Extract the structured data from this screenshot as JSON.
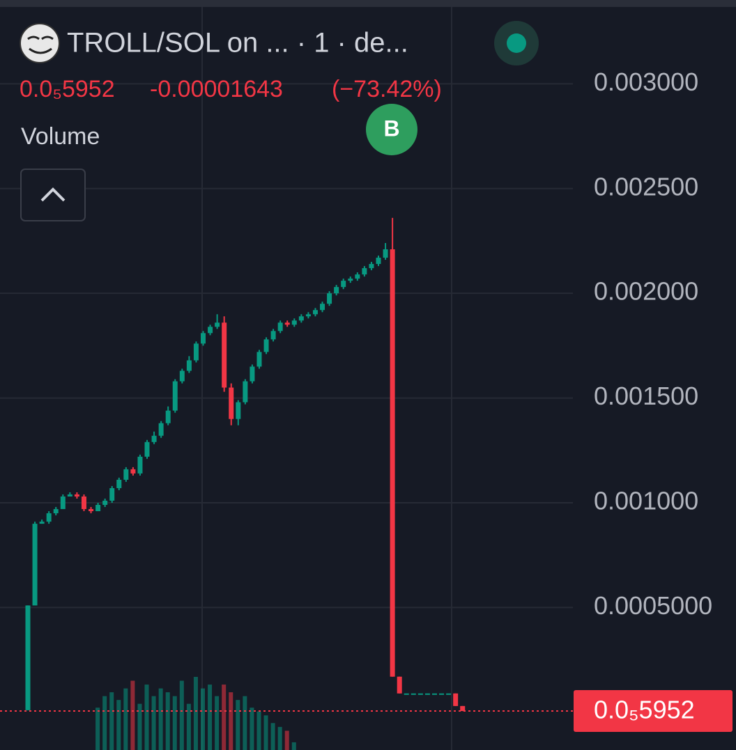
{
  "chart_data": {
    "type": "candlestick",
    "title": "TROLL/SOL on ... · 1 · de...",
    "last_price": {
      "value": 5.952e-06,
      "label": "0.0₅5952"
    },
    "change": {
      "value": -1.643e-05,
      "label": "-0.00001643"
    },
    "change_pct": {
      "value": -73.42,
      "label": "(−73.42%)"
    },
    "volume_label": "Volume",
    "annotation": "B",
    "up_color": "#089981",
    "down_color": "#f23645",
    "grid": true,
    "ylim": [
      -0.00018,
      0.0034
    ],
    "yticks": [
      {
        "value": 0.003,
        "label": "0.003000"
      },
      {
        "value": 0.0025,
        "label": "0.002500"
      },
      {
        "value": 0.002,
        "label": "0.002000"
      },
      {
        "value": 0.0015,
        "label": "0.001500"
      },
      {
        "value": 0.001,
        "label": "0.001000"
      },
      {
        "value": 0.0005,
        "label": "0.0005000"
      }
    ],
    "open": [
      1e-05,
      0.00051,
      0.0009,
      0.00091,
      0.00095,
      0.00097,
      0.00103,
      0.00104,
      0.00103,
      0.00097,
      0.00096,
      0.00099,
      0.00101,
      0.00107,
      0.00111,
      0.00116,
      0.00114,
      0.00122,
      0.00129,
      0.00132,
      0.00138,
      0.00144,
      0.00158,
      0.00163,
      0.00168,
      0.00176,
      0.00181,
      0.00184,
      0.00186,
      0.00155,
      0.0014,
      0.00148,
      0.00158,
      0.00165,
      0.00172,
      0.00178,
      0.00182,
      0.00186,
      0.00185,
      0.00187,
      0.00189,
      0.0019,
      0.00192,
      0.00195,
      0.002,
      0.00203,
      0.00206,
      0.00207,
      0.00209,
      0.00212,
      0.00214,
      0.00217,
      0.00221,
      0.00017,
      9e-05,
      9e-05,
      9e-05,
      9e-05,
      9e-05,
      9e-05,
      9e-05,
      9e-05,
      3e-05
    ],
    "high": [
      0.00051,
      0.00091,
      0.00092,
      0.00096,
      0.00098,
      0.00104,
      0.00105,
      0.00105,
      0.00104,
      0.00098,
      0.001,
      0.00102,
      0.00108,
      0.00112,
      0.00117,
      0.00117,
      0.00123,
      0.0013,
      0.00134,
      0.00139,
      0.00146,
      0.00159,
      0.00164,
      0.0017,
      0.00177,
      0.00182,
      0.00185,
      0.0019,
      0.00189,
      0.00157,
      0.00149,
      0.00159,
      0.00166,
      0.00173,
      0.00179,
      0.00183,
      0.00187,
      0.00187,
      0.00188,
      0.0019,
      0.00191,
      0.00193,
      0.00196,
      0.00201,
      0.00204,
      0.00207,
      0.00208,
      0.0021,
      0.00213,
      0.00215,
      0.00218,
      0.00224,
      0.00236,
      0.00017,
      9e-05,
      9e-05,
      9e-05,
      9e-05,
      9e-05,
      9e-05,
      9e-05,
      9e-05,
      3e-05
    ],
    "low": [
      1e-05,
      0.00051,
      0.0009,
      0.0009,
      0.00094,
      0.00097,
      0.00103,
      0.00102,
      0.00096,
      0.00095,
      0.00096,
      0.00098,
      0.001,
      0.00106,
      0.0011,
      0.00113,
      0.00113,
      0.00121,
      0.00128,
      0.00131,
      0.00137,
      0.00143,
      0.00157,
      0.00162,
      0.00167,
      0.00175,
      0.0018,
      0.00183,
      0.00153,
      0.00137,
      0.00137,
      0.00147,
      0.00157,
      0.00164,
      0.00171,
      0.00177,
      0.00181,
      0.00184,
      0.00184,
      0.00186,
      0.00188,
      0.00189,
      0.00191,
      0.00194,
      0.00199,
      0.00202,
      0.00205,
      0.00206,
      0.00208,
      0.00211,
      0.00213,
      0.00216,
      0.00017,
      9e-05,
      9e-05,
      9e-05,
      9e-05,
      9e-05,
      9e-05,
      9e-05,
      9e-05,
      3e-05,
      5.952e-06
    ],
    "close": [
      0.00051,
      0.0009,
      0.00091,
      0.00095,
      0.00097,
      0.00103,
      0.00104,
      0.00103,
      0.00097,
      0.00096,
      0.00099,
      0.00101,
      0.00107,
      0.00111,
      0.00116,
      0.00114,
      0.00122,
      0.00129,
      0.00132,
      0.00138,
      0.00144,
      0.00158,
      0.00163,
      0.00168,
      0.00176,
      0.00181,
      0.00184,
      0.00186,
      0.00155,
      0.0014,
      0.00148,
      0.00158,
      0.00165,
      0.00172,
      0.00178,
      0.00182,
      0.00186,
      0.00185,
      0.00187,
      0.00189,
      0.0019,
      0.00192,
      0.00195,
      0.002,
      0.00203,
      0.00206,
      0.00207,
      0.00209,
      0.00212,
      0.00214,
      0.00217,
      0.00221,
      0.00017,
      9e-05,
      9e-05,
      9e-05,
      9e-05,
      9e-05,
      9e-05,
      9e-05,
      9e-05,
      3e-05,
      5.952e-06
    ],
    "volume": [
      null,
      null,
      null,
      null,
      null,
      null,
      null,
      null,
      null,
      null,
      55,
      70,
      75,
      65,
      80,
      90,
      60,
      85,
      70,
      80,
      75,
      70,
      90,
      60,
      95,
      80,
      85,
      70,
      85,
      75,
      65,
      70,
      55,
      50,
      45,
      35,
      30,
      25,
      10,
      null,
      null,
      null,
      null,
      null,
      null,
      null,
      null,
      null,
      null,
      null,
      null,
      null,
      null,
      null,
      null,
      null,
      null,
      null,
      null,
      null,
      null,
      null,
      null
    ]
  }
}
